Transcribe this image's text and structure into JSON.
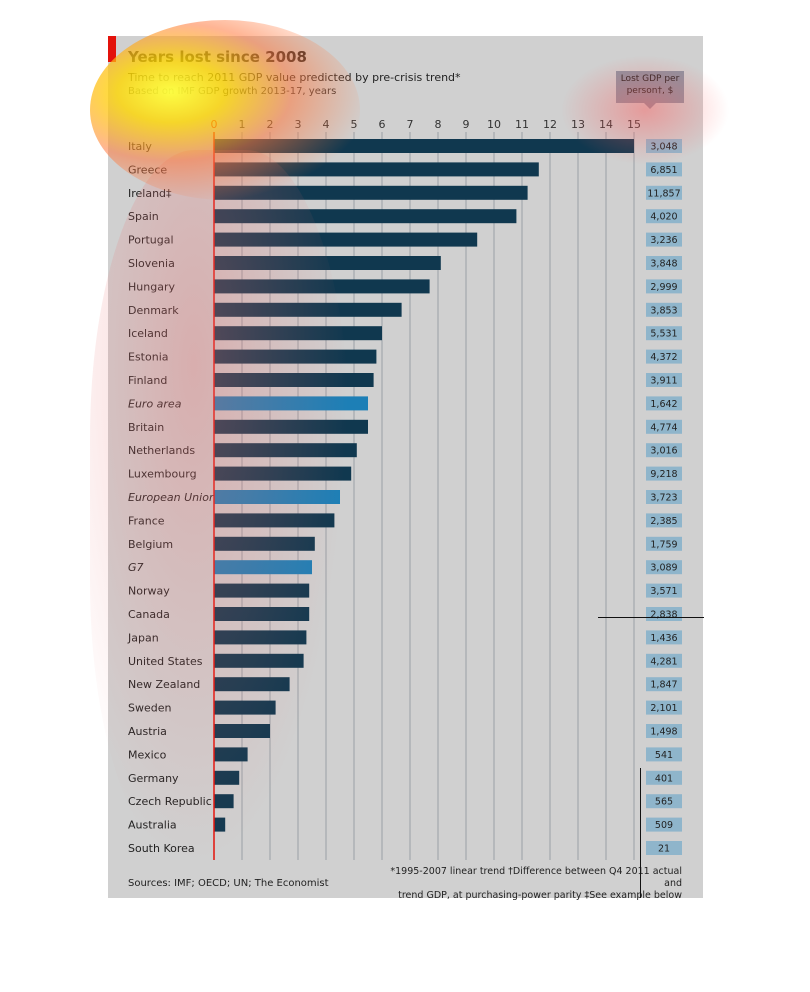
{
  "chart_data": {
    "type": "bar",
    "orientation": "horizontal",
    "title": "Years lost since 2008",
    "subtitle": "Time to reach 2011 GDP value predicted by pre-crisis trend*",
    "subtitle2": "Based on IMF GDP growth 2013-17, years",
    "side_header": "Lost GDP per person†, $",
    "xlim": [
      0,
      15
    ],
    "xticks": [
      0,
      1,
      2,
      3,
      4,
      5,
      6,
      7,
      8,
      9,
      10,
      11,
      12,
      13,
      14,
      15
    ],
    "categories": [
      "Italy",
      "Greece",
      "Ireland‡",
      "Spain",
      "Portugal",
      "Slovenia",
      "Hungary",
      "Denmark",
      "Iceland",
      "Estonia",
      "Finland",
      "Euro area",
      "Britain",
      "Netherlands",
      "Luxembourg",
      "European Union",
      "France",
      "Belgium",
      "G7",
      "Norway",
      "Canada",
      "Japan",
      "United States",
      "New Zealand",
      "Sweden",
      "Austria",
      "Mexico",
      "Germany",
      "Czech Republic",
      "Australia",
      "South Korea"
    ],
    "values": [
      15.0,
      11.6,
      11.2,
      10.8,
      9.4,
      8.1,
      7.7,
      6.7,
      6.0,
      5.8,
      5.7,
      5.5,
      5.5,
      5.1,
      4.9,
      4.5,
      4.3,
      3.6,
      3.5,
      3.4,
      3.4,
      3.3,
      3.2,
      2.7,
      2.2,
      2.0,
      1.2,
      0.9,
      0.7,
      0.4,
      0.0
    ],
    "lost_gdp_per_person": [
      "3,048",
      "6,851",
      "11,857",
      "4,020",
      "3,236",
      "3,848",
      "2,999",
      "3,853",
      "5,531",
      "4,372",
      "3,911",
      "1,642",
      "4,774",
      "3,016",
      "9,218",
      "3,723",
      "2,385",
      "1,759",
      "3,089",
      "3,571",
      "2,838",
      "1,436",
      "4,281",
      "1,847",
      "2,101",
      "1,498",
      "541",
      "401",
      "565",
      "509",
      "21"
    ],
    "aggregates": [
      "Euro area",
      "European Union",
      "G7"
    ],
    "colors": {
      "bar": "#10384f",
      "aggregate_bar": "#1d7fb6",
      "zero_line": "#e3120b",
      "gridline": "#9aa0a6",
      "value_box": "#8fb5cb"
    },
    "grid": true
  },
  "footer": {
    "sources": "Sources: IMF; OECD; UN; The Economist",
    "note1": "*1995-2007 linear trend   †Difference between Q4 2011 actual and",
    "note2": "trend GDP, at purchasing-power parity   ‡See example below"
  }
}
